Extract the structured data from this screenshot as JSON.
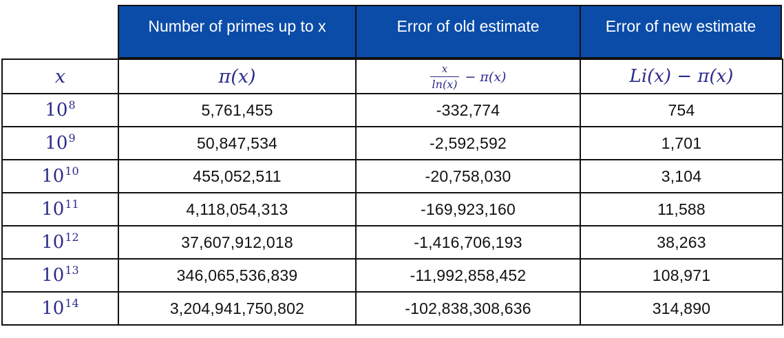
{
  "colors": {
    "header_blue": "#0b4ca8",
    "math_navy": "#2b2b8a",
    "border": "#111111",
    "body_text": "#111111",
    "header_text": "#ffffff"
  },
  "chart_data": {
    "type": "table",
    "group_headers": [
      "Number of primes up to x",
      "Error of old estimate",
      "Error of new estimate"
    ],
    "math_header": {
      "x": "x",
      "pi": "π(x)",
      "old_frac_numerator": "x",
      "old_frac_denominator": "ln(x)",
      "old_rest": "− π(x)",
      "new": "Li(x) − π(x)"
    },
    "rows": [
      {
        "x_base": "10",
        "x_exponent": "8",
        "pi_x": "5,761,455",
        "old_error": "-332,774",
        "new_error": "754"
      },
      {
        "x_base": "10",
        "x_exponent": "9",
        "pi_x": "50,847,534",
        "old_error": "-2,592,592",
        "new_error": "1,701"
      },
      {
        "x_base": "10",
        "x_exponent": "10",
        "pi_x": "455,052,511",
        "old_error": "-20,758,030",
        "new_error": "3,104"
      },
      {
        "x_base": "10",
        "x_exponent": "11",
        "pi_x": "4,118,054,313",
        "old_error": "-169,923,160",
        "new_error": "11,588"
      },
      {
        "x_base": "10",
        "x_exponent": "12",
        "pi_x": "37,607,912,018",
        "old_error": "-1,416,706,193",
        "new_error": "38,263"
      },
      {
        "x_base": "10",
        "x_exponent": "13",
        "pi_x": "346,065,536,839",
        "old_error": "-11,992,858,452",
        "new_error": "108,971"
      },
      {
        "x_base": "10",
        "x_exponent": "14",
        "pi_x": "3,204,941,750,802",
        "old_error": "-102,838,308,636",
        "new_error": "314,890"
      }
    ]
  }
}
